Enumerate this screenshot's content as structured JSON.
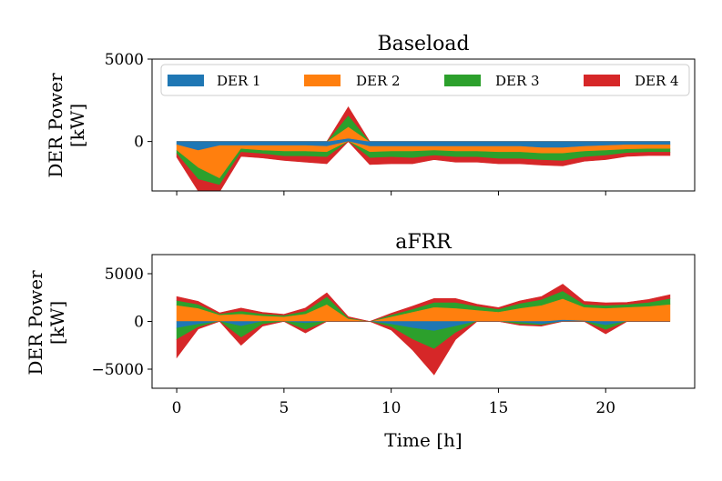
{
  "chart_data": [
    {
      "type": "area",
      "title": "Baseload",
      "ylabel_line1": "DER Power",
      "ylabel_line2": "[kW]",
      "ylim": [
        -3000,
        5000
      ],
      "yticks": [
        0,
        5000
      ],
      "ytick_labels": [
        "0",
        "5000"
      ],
      "xlim": [
        -1.15,
        24.15
      ],
      "x": [
        0,
        1,
        2,
        3,
        4,
        5,
        6,
        7,
        8,
        9,
        10,
        11,
        12,
        13,
        14,
        15,
        16,
        17,
        18,
        19,
        20,
        21,
        22,
        23
      ],
      "legend_position": "top",
      "series": [
        {
          "name": "DER 1",
          "color": "#1f77b4",
          "pos": [
            0,
            0,
            0,
            0,
            0,
            0,
            0,
            0,
            200,
            0,
            0,
            0,
            0,
            0,
            0,
            0,
            0,
            0,
            0,
            0,
            0,
            0,
            0,
            0
          ],
          "neg": [
            -200,
            -550,
            -250,
            -250,
            -250,
            -250,
            -250,
            -300,
            0,
            -300,
            -300,
            -300,
            -300,
            -300,
            -300,
            -300,
            -300,
            -380,
            -380,
            -300,
            -250,
            -200,
            -200,
            -200
          ]
        },
        {
          "name": "DER 2",
          "color": "#ff7f0e",
          "pos": [
            0,
            0,
            0,
            0,
            0,
            0,
            0,
            0,
            700,
            0,
            0,
            0,
            0,
            0,
            0,
            0,
            0,
            0,
            0,
            0,
            0,
            0,
            0,
            0
          ],
          "neg": [
            -350,
            -1050,
            -2000,
            -200,
            -300,
            -350,
            -350,
            -350,
            0,
            -350,
            -300,
            -300,
            -250,
            -300,
            -300,
            -350,
            -350,
            -350,
            -350,
            -300,
            -300,
            -280,
            -250,
            -250
          ]
        },
        {
          "name": "DER 3",
          "color": "#2ca02c",
          "pos": [
            0,
            0,
            0,
            0,
            0,
            0,
            0,
            0,
            700,
            0,
            0,
            0,
            0,
            0,
            0,
            0,
            0,
            0,
            0,
            0,
            0,
            0,
            0,
            0
          ],
          "neg": [
            -200,
            -700,
            -400,
            -200,
            -200,
            -300,
            -300,
            -300,
            0,
            -350,
            -350,
            -400,
            -300,
            -350,
            -350,
            -400,
            -400,
            -400,
            -450,
            -350,
            -300,
            -220,
            -200,
            -200
          ]
        },
        {
          "name": "DER 4",
          "color": "#d62728",
          "pos": [
            0,
            0,
            0,
            0,
            0,
            0,
            0,
            0,
            500,
            0,
            0,
            0,
            0,
            0,
            0,
            0,
            0,
            0,
            0,
            0,
            0,
            0,
            0,
            0
          ],
          "neg": [
            -200,
            -700,
            -400,
            -250,
            -250,
            -250,
            -350,
            -400,
            0,
            -400,
            -400,
            -350,
            -250,
            -300,
            -300,
            -300,
            -300,
            -300,
            -300,
            -250,
            -250,
            -200,
            -200,
            -200
          ]
        }
      ]
    },
    {
      "type": "area",
      "title": "aFRR",
      "ylabel_line1": "DER Power",
      "ylabel_line2": "[kW]",
      "ylim": [
        -7000,
        7000
      ],
      "yticks": [
        -5000,
        0,
        5000
      ],
      "ytick_labels": [
        "−5000",
        "0",
        "5000"
      ],
      "xlim": [
        -1.15,
        24.15
      ],
      "xticks": [
        0,
        5,
        10,
        15,
        20
      ],
      "xtick_labels": [
        "0",
        "5",
        "10",
        "15",
        "20"
      ],
      "xlabel": "Time [h]",
      "x": [
        0,
        1,
        2,
        3,
        4,
        5,
        6,
        7,
        8,
        9,
        10,
        11,
        12,
        13,
        14,
        15,
        16,
        17,
        18,
        19,
        20,
        21,
        22,
        23
      ],
      "series": [
        {
          "name": "DER 1",
          "color": "#1f77b4",
          "pos": [
            0,
            0,
            0,
            0,
            0,
            0,
            0,
            0,
            0,
            0,
            0,
            0,
            0,
            0,
            0,
            0,
            0,
            0,
            200,
            100,
            0,
            0,
            0,
            0
          ],
          "neg": [
            -700,
            -300,
            0,
            -500,
            0,
            0,
            -200,
            0,
            0,
            0,
            -300,
            -700,
            -1000,
            -500,
            0,
            0,
            -100,
            -300,
            0,
            0,
            -400,
            0,
            0,
            0
          ]
        },
        {
          "name": "DER 2",
          "color": "#ff7f0e",
          "pos": [
            1700,
            1400,
            700,
            800,
            600,
            500,
            800,
            1800,
            300,
            0,
            500,
            1000,
            1500,
            1400,
            1200,
            1000,
            1400,
            1700,
            2200,
            1400,
            1400,
            1500,
            1600,
            1800
          ]
        },
        {
          "name": "DER 3",
          "color": "#2ca02c",
          "pos": [
            500,
            400,
            100,
            300,
            200,
            150,
            300,
            800,
            100,
            0,
            200,
            300,
            500,
            600,
            400,
            300,
            500,
            600,
            800,
            300,
            300,
            300,
            400,
            600
          ],
          "neg": [
            -1200,
            -300,
            0,
            -1200,
            -300,
            0,
            -700,
            0,
            0,
            0,
            -300,
            -1200,
            -1900,
            -700,
            0,
            0,
            -200,
            -100,
            0,
            0,
            -500,
            0,
            0,
            0
          ]
        },
        {
          "name": "DER 4",
          "color": "#d62728",
          "pos": [
            400,
            300,
            100,
            300,
            150,
            100,
            300,
            400,
            100,
            0,
            150,
            300,
            400,
            400,
            200,
            150,
            250,
            300,
            700,
            300,
            250,
            200,
            300,
            400
          ],
          "neg": [
            -1900,
            -200,
            0,
            -800,
            -200,
            0,
            -300,
            0,
            0,
            0,
            -300,
            -1100,
            -2700,
            -700,
            0,
            0,
            -100,
            -100,
            0,
            0,
            -400,
            0,
            0,
            0
          ]
        }
      ]
    }
  ]
}
